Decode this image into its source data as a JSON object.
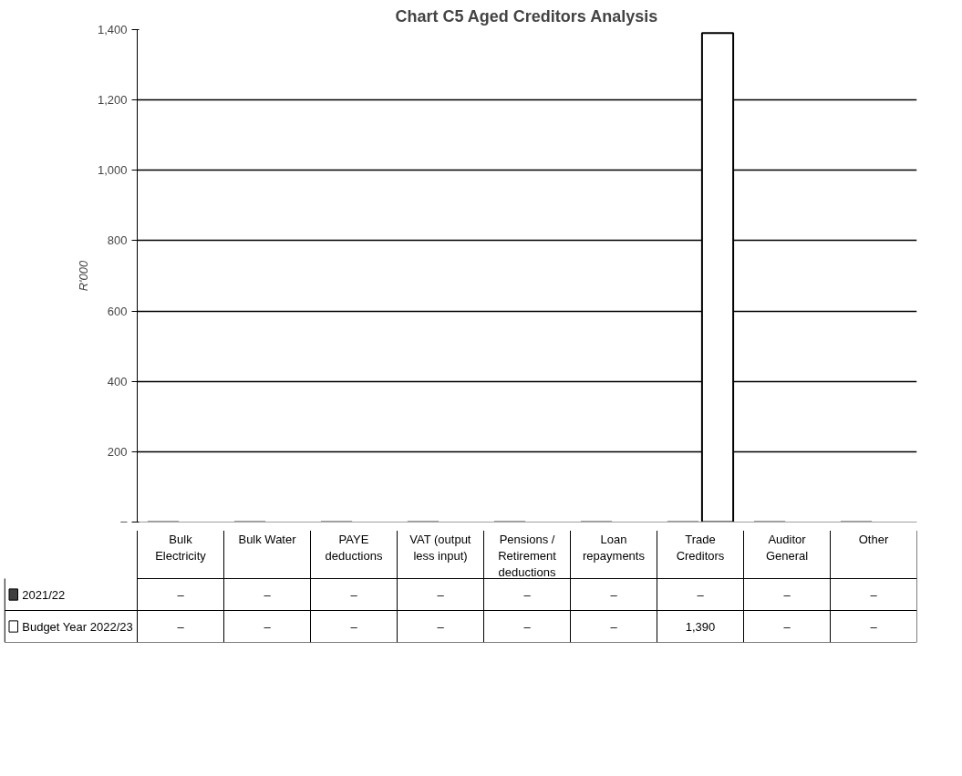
{
  "chart_data": {
    "type": "bar",
    "title": "Chart C5 Aged Creditors Analysis",
    "ylabel": "R'000",
    "categories": [
      "Bulk Electricity",
      "Bulk Water",
      "PAYE deductions",
      "VAT (output less input)",
      "Pensions / Retirement deductions",
      "Loan repayments",
      "Trade Creditors",
      "Auditor General",
      "Other"
    ],
    "series": [
      {
        "name": "2021/22",
        "color": "#404040",
        "values": [
          0,
          0,
          0,
          0,
          0,
          0,
          0,
          0,
          0
        ],
        "value_labels": [
          "–",
          "–",
          "–",
          "–",
          "–",
          "–",
          "–",
          "–",
          "–"
        ]
      },
      {
        "name": "Budget Year 2022/23",
        "color": "#ffffff",
        "values": [
          0,
          0,
          0,
          0,
          0,
          0,
          1390,
          0,
          0
        ],
        "value_labels": [
          "–",
          "–",
          "–",
          "–",
          "–",
          "–",
          "1,390",
          "–",
          "–"
        ]
      }
    ],
    "ylim": [
      0,
      1400
    ],
    "yticks": [
      {
        "value": 0,
        "label": "–"
      },
      200,
      400,
      600,
      800,
      {
        "value": 1000,
        "label": "1,000"
      },
      {
        "value": 1200,
        "label": "1,200"
      },
      {
        "value": 1400,
        "label": "1,400"
      }
    ],
    "grid": "y",
    "legend": "bottom",
    "tick_labels": "y"
  }
}
